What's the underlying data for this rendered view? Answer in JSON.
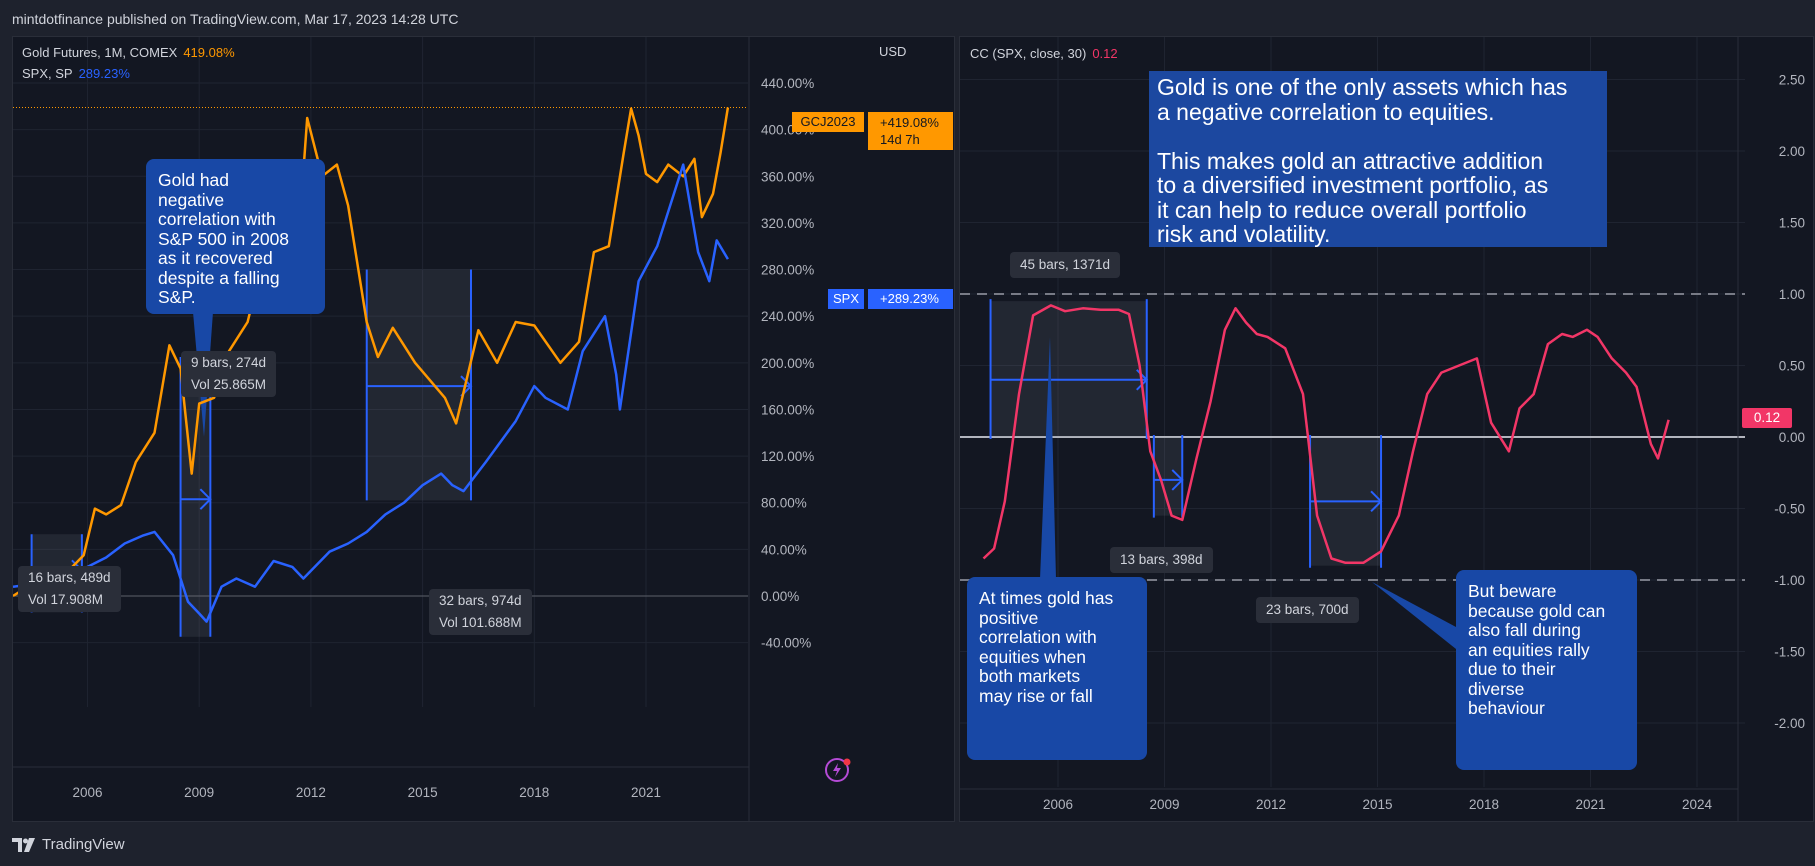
{
  "header": {
    "publisher_line": "mintdotfinance published on TradingView.com, Mar 17, 2023 14:28 UTC"
  },
  "footer": {
    "brand": "TradingView"
  },
  "colors": {
    "gold": "#ff9800",
    "spx": "#2962ff",
    "cc": "#f23667",
    "callout": "#1848a6",
    "bg": "#131722"
  },
  "left": {
    "legend": [
      {
        "name": "Gold Futures, 1M, COMEX",
        "value": "419.08%",
        "color": "#ff9800"
      },
      {
        "name": "SPX, SP",
        "value": "289.23%",
        "color": "#2962ff"
      }
    ],
    "currency": "USD",
    "price_label_gold": {
      "ticker": "GCJ2023",
      "value": "+419.08%",
      "countdown": "14d 7h"
    },
    "price_label_spx": {
      "ticker": "SPX",
      "value": "+289.23%"
    },
    "callout_2008": "Gold had\nnegative\ncorrelation with\nS&P 500 in 2008\nas it recovered\ndespite a falling\nS&P.",
    "measures": [
      {
        "text": "16 bars, 489d\nVol 17.908M"
      },
      {
        "text": "9 bars, 274d\nVol 25.865M"
      },
      {
        "text": "32 bars, 974d\nVol 101.688M"
      }
    ]
  },
  "right": {
    "legend": {
      "name": "CC (SPX, close, 30)",
      "value": "0.12",
      "color": "#f23667"
    },
    "current_value_label": "0.12",
    "callout_top": "Gold is one of the only assets which has\na negative correlation to equities.\n\nThis makes gold an attractive addition\nto a diversified investment portfolio, as\nit can help to reduce overall portfolio\nrisk and volatility.",
    "callout_positive": "At times gold has\npositive\ncorrelation with\nequities when\nboth markets\nmay rise or fall",
    "callout_beware": "But beware\nbecause gold can\nalso fall during\nan equities rally\ndue to their\ndiverse\nbehaviour",
    "measures": [
      {
        "text": "45 bars, 1371d"
      },
      {
        "text": "13 bars, 398d"
      },
      {
        "text": "23 bars, 700d"
      }
    ]
  },
  "chart_data": [
    {
      "type": "line",
      "x_unit": "year",
      "y_unit": "percent change",
      "xticks": [
        "2006",
        "2009",
        "2012",
        "2015",
        "2018",
        "2021"
      ],
      "yticks": [
        "440.00%",
        "400.00%",
        "360.00%",
        "320.00%",
        "280.00%",
        "240.00%",
        "200.00%",
        "160.00%",
        "120.00%",
        "80.00%",
        "40.00%",
        "0.00%",
        "-40.00%"
      ],
      "ylim": [
        -40,
        440
      ],
      "series": [
        {
          "name": "Gold Futures, 1M, COMEX",
          "color": "#ff9800",
          "x": [
            2004.0,
            2004.5,
            2005.0,
            2005.5,
            2005.9,
            2006.2,
            2006.5,
            2006.9,
            2007.3,
            2007.8,
            2008.2,
            2008.5,
            2008.8,
            2009.0,
            2009.4,
            2009.8,
            2010.3,
            2010.8,
            2011.3,
            2011.7,
            2011.9,
            2012.3,
            2012.7,
            2013.0,
            2013.5,
            2013.8,
            2014.2,
            2014.8,
            2015.2,
            2015.6,
            2015.9,
            2016.5,
            2017.0,
            2017.5,
            2018.0,
            2018.7,
            2019.2,
            2019.6,
            2020.0,
            2020.4,
            2020.6,
            2020.8,
            2021.0,
            2021.3,
            2021.6,
            2022.0,
            2022.3,
            2022.5,
            2022.8,
            2023.0,
            2023.2
          ],
          "y": [
            0,
            10,
            18,
            22,
            35,
            75,
            70,
            78,
            115,
            140,
            215,
            195,
            105,
            165,
            170,
            210,
            235,
            300,
            310,
            320,
            410,
            360,
            370,
            335,
            235,
            205,
            230,
            200,
            185,
            170,
            148,
            228,
            200,
            235,
            232,
            200,
            218,
            295,
            300,
            380,
            418,
            395,
            362,
            355,
            370,
            360,
            375,
            325,
            345,
            380,
            419
          ]
        },
        {
          "name": "SPX, SP",
          "color": "#2962ff",
          "x": [
            2004.0,
            2004.5,
            2005.0,
            2005.5,
            2006.0,
            2006.5,
            2007.0,
            2007.5,
            2007.8,
            2008.3,
            2008.7,
            2009.0,
            2009.2,
            2009.6,
            2010.0,
            2010.5,
            2011.0,
            2011.5,
            2011.8,
            2012.5,
            2013.0,
            2013.5,
            2014.0,
            2014.5,
            2015.0,
            2015.5,
            2015.8,
            2016.1,
            2016.7,
            2017.5,
            2018.0,
            2018.3,
            2018.9,
            2019.3,
            2019.9,
            2020.2,
            2020.3,
            2020.8,
            2021.3,
            2021.8,
            2022.0,
            2022.4,
            2022.7,
            2022.9,
            2023.2
          ],
          "y": [
            8,
            10,
            12,
            17,
            25,
            33,
            45,
            52,
            55,
            35,
            -5,
            -15,
            -22,
            8,
            15,
            8,
            30,
            25,
            15,
            38,
            45,
            55,
            70,
            80,
            95,
            105,
            95,
            90,
            115,
            150,
            180,
            170,
            160,
            210,
            240,
            190,
            160,
            270,
            300,
            350,
            370,
            295,
            270,
            305,
            289
          ]
        }
      ]
    },
    {
      "type": "line",
      "title": "CC (SPX, close, 30)",
      "xticks": [
        "2006",
        "2009",
        "2012",
        "2015",
        "2018",
        "2021",
        "2024"
      ],
      "yticks": [
        "2.50",
        "2.00",
        "1.50",
        "1.00",
        "0.50",
        "0.00",
        "-0.50",
        "-1.00",
        "-1.50",
        "-2.00"
      ],
      "ylim": [
        -2.25,
        2.5
      ],
      "reference_lines": [
        1.0,
        0.0,
        -1.0
      ],
      "series": [
        {
          "name": "CC (SPX, close, 30)",
          "color": "#f23667",
          "x": [
            2003.9,
            2004.2,
            2004.5,
            2004.9,
            2005.3,
            2005.8,
            2006.2,
            2006.7,
            2007.2,
            2007.7,
            2008.0,
            2008.3,
            2008.6,
            2008.9,
            2009.2,
            2009.5,
            2009.9,
            2010.3,
            2010.7,
            2011.0,
            2011.3,
            2011.6,
            2011.9,
            2012.4,
            2012.9,
            2013.3,
            2013.7,
            2014.1,
            2014.6,
            2015.1,
            2015.6,
            2016.0,
            2016.4,
            2016.8,
            2017.3,
            2017.8,
            2018.2,
            2018.7,
            2019.0,
            2019.4,
            2019.8,
            2020.2,
            2020.5,
            2020.9,
            2021.2,
            2021.6,
            2022.0,
            2022.3,
            2022.5,
            2022.7,
            2022.9,
            2023.2
          ],
          "y": [
            -0.85,
            -0.78,
            -0.45,
            0.3,
            0.85,
            0.92,
            0.88,
            0.9,
            0.89,
            0.89,
            0.86,
            0.5,
            -0.1,
            -0.3,
            -0.55,
            -0.58,
            -0.15,
            0.25,
            0.75,
            0.9,
            0.8,
            0.72,
            0.7,
            0.62,
            0.3,
            -0.55,
            -0.85,
            -0.88,
            -0.88,
            -0.8,
            -0.55,
            -0.1,
            0.3,
            0.45,
            0.5,
            0.55,
            0.1,
            -0.1,
            0.2,
            0.3,
            0.65,
            0.72,
            0.7,
            0.75,
            0.7,
            0.55,
            0.45,
            0.35,
            0.15,
            -0.05,
            -0.15,
            0.12
          ]
        }
      ]
    }
  ]
}
